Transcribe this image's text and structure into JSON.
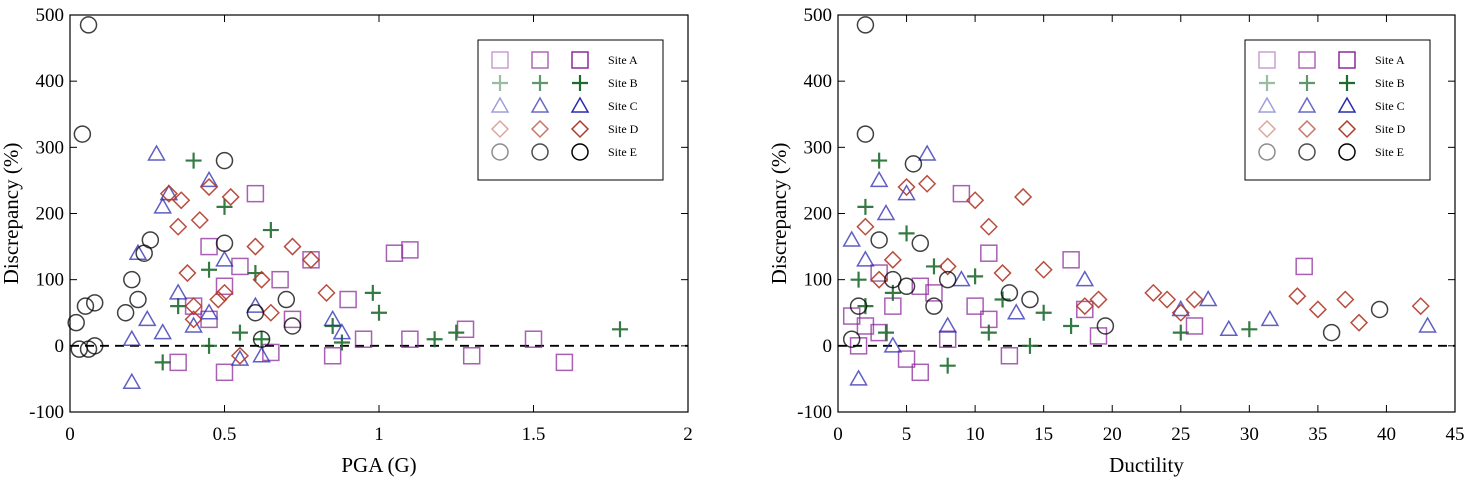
{
  "chart_data": [
    {
      "type": "scatter",
      "xlabel": "PGA (G)",
      "ylabel": "Discrepancy (%)",
      "xlim": [
        0,
        2
      ],
      "ylim": [
        -100,
        500
      ],
      "xticks": [
        0,
        0.5,
        1,
        1.5,
        2
      ],
      "yticks": [
        -100,
        0,
        100,
        200,
        300,
        400,
        500
      ],
      "hline": 0,
      "legend": "upper right",
      "series": [
        {
          "name": "Site A",
          "color": "#8b2a9b",
          "marker": "square",
          "x": [
            0.35,
            0.4,
            0.45,
            0.5,
            0.55,
            0.6,
            0.65,
            0.68,
            0.72,
            0.78,
            0.85,
            0.9,
            0.95,
            1.05,
            1.1,
            1.1,
            1.28,
            1.3,
            1.5,
            1.6,
            0.45,
            0.5
          ],
          "y": [
            -25,
            60,
            150,
            -40,
            120,
            230,
            -10,
            100,
            40,
            130,
            -15,
            70,
            10,
            140,
            145,
            10,
            25,
            -15,
            10,
            -25,
            40,
            90
          ]
        },
        {
          "name": "Site B",
          "color": "#1e6b2e",
          "marker": "plus",
          "x": [
            0.3,
            0.4,
            0.45,
            0.5,
            0.55,
            0.6,
            0.65,
            0.45,
            0.85,
            0.88,
            0.98,
            1.0,
            1.18,
            1.25,
            1.78,
            0.35,
            0.62
          ],
          "y": [
            -25,
            280,
            115,
            210,
            20,
            110,
            175,
            0,
            30,
            5,
            80,
            50,
            10,
            20,
            25,
            60,
            10
          ]
        },
        {
          "name": "Site C",
          "color": "#2a2ab0",
          "marker": "triangle",
          "x": [
            0.2,
            0.2,
            0.22,
            0.25,
            0.28,
            0.3,
            0.32,
            0.35,
            0.4,
            0.45,
            0.5,
            0.55,
            0.6,
            0.62,
            0.85,
            0.88,
            0.3,
            0.45
          ],
          "y": [
            -55,
            10,
            140,
            40,
            290,
            210,
            230,
            80,
            30,
            250,
            130,
            -20,
            60,
            -15,
            40,
            20,
            20,
            50
          ]
        },
        {
          "name": "Site D",
          "color": "#b03a2a",
          "marker": "diamond",
          "x": [
            0.32,
            0.35,
            0.36,
            0.38,
            0.4,
            0.42,
            0.45,
            0.5,
            0.52,
            0.55,
            0.6,
            0.62,
            0.65,
            0.72,
            0.78,
            0.83,
            0.4,
            0.48
          ],
          "y": [
            230,
            180,
            220,
            110,
            60,
            190,
            240,
            80,
            225,
            -15,
            150,
            100,
            50,
            150,
            130,
            80,
            40,
            70
          ]
        },
        {
          "name": "Site E",
          "color": "#000000",
          "marker": "circle",
          "x": [
            0.02,
            0.03,
            0.04,
            0.05,
            0.06,
            0.06,
            0.08,
            0.08,
            0.18,
            0.2,
            0.22,
            0.24,
            0.26,
            0.5,
            0.5,
            0.6,
            0.62,
            0.7,
            0.72
          ],
          "y": [
            35,
            -5,
            320,
            60,
            485,
            -5,
            65,
            0,
            50,
            100,
            70,
            140,
            160,
            280,
            155,
            50,
            10,
            70,
            30
          ]
        }
      ]
    },
    {
      "type": "scatter",
      "xlabel": "Ductility",
      "ylabel": "Discrepancy (%)",
      "xlim": [
        0,
        45
      ],
      "ylim": [
        -100,
        500
      ],
      "xticks": [
        0,
        5,
        10,
        15,
        20,
        25,
        30,
        35,
        40,
        45
      ],
      "yticks": [
        -100,
        0,
        100,
        200,
        300,
        400,
        500
      ],
      "hline": 0,
      "legend": "upper right",
      "series": [
        {
          "name": "Site A",
          "color": "#8b2a9b",
          "marker": "square",
          "x": [
            1,
            1.5,
            2,
            3,
            4,
            5,
            6,
            7,
            8,
            9,
            10,
            11,
            11,
            12.5,
            17,
            18,
            19,
            26,
            34,
            6,
            3
          ],
          "y": [
            45,
            0,
            30,
            110,
            60,
            -20,
            -40,
            80,
            10,
            230,
            60,
            140,
            40,
            -15,
            130,
            55,
            15,
            30,
            120,
            90,
            20
          ]
        },
        {
          "name": "Site B",
          "color": "#1e6b2e",
          "marker": "plus",
          "x": [
            1.5,
            2,
            3,
            3.5,
            4,
            5,
            7,
            8,
            10,
            11,
            12,
            15,
            14,
            17,
            25,
            30,
            2
          ],
          "y": [
            100,
            210,
            280,
            20,
            80,
            170,
            120,
            -30,
            105,
            20,
            70,
            50,
            0,
            30,
            20,
            25,
            60
          ]
        },
        {
          "name": "Site C",
          "color": "#2a2ab0",
          "marker": "triangle",
          "x": [
            1,
            1.5,
            2,
            3,
            3.5,
            5,
            6.5,
            8,
            9,
            13,
            18,
            25,
            27,
            28.5,
            31.5,
            43,
            4
          ],
          "y": [
            160,
            -50,
            130,
            250,
            200,
            230,
            290,
            30,
            100,
            50,
            100,
            55,
            70,
            25,
            40,
            30,
            0
          ]
        },
        {
          "name": "Site D",
          "color": "#b03a2a",
          "marker": "diamond",
          "x": [
            2,
            3,
            4,
            5,
            6.5,
            8,
            10,
            11,
            12,
            13.5,
            15,
            18,
            19,
            23,
            24,
            25,
            26,
            33.5,
            35,
            37,
            38,
            42.5
          ],
          "y": [
            180,
            100,
            130,
            240,
            245,
            120,
            220,
            180,
            110,
            225,
            115,
            60,
            70,
            80,
            70,
            50,
            70,
            75,
            55,
            70,
            35,
            60
          ]
        },
        {
          "name": "Site E",
          "color": "#000000",
          "marker": "circle",
          "x": [
            1.5,
            2,
            2,
            3,
            4,
            5,
            5.5,
            6,
            7,
            8,
            12.5,
            14,
            19.5,
            36,
            39.5,
            1
          ],
          "y": [
            60,
            485,
            320,
            160,
            100,
            90,
            275,
            155,
            60,
            100,
            80,
            70,
            30,
            20,
            55,
            10
          ]
        }
      ]
    }
  ]
}
